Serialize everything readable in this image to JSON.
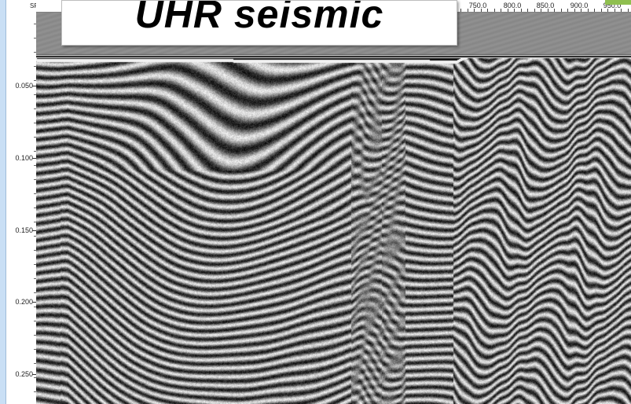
{
  "title": "UHR seismic",
  "top_ruler": {
    "sp_label": "SP:",
    "ticks": [
      "750.0",
      "800.0",
      "850.0",
      "900.0",
      "950.0"
    ]
  },
  "y_axis": {
    "ticks": [
      "0.050",
      "0.100",
      "0.150",
      "0.200",
      "0.250"
    ]
  },
  "colors": {
    "background": "#808080",
    "title_box": "#ffffff",
    "axis_panel": "#ffffff",
    "side_strip": "#c9dff5",
    "accent_chip": "#8fbf4f"
  }
}
